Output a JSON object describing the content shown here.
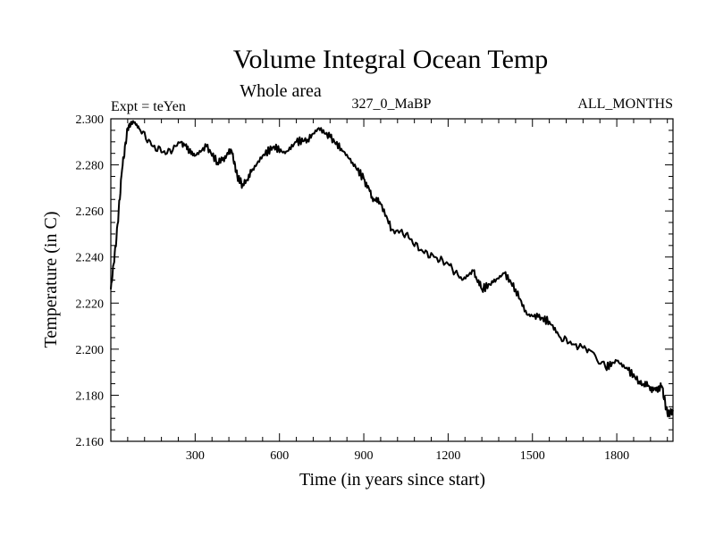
{
  "chart_data": {
    "type": "line",
    "title": "Volume Integral Ocean Temp",
    "subtitle": "Whole area",
    "experiment": "Expt = teYen",
    "run_label": "327_0_MaBP",
    "months_label": "ALL_MONTHS",
    "xlabel": "Time (in years since start)",
    "ylabel": "Temperature (in C)",
    "xlim": [
      0,
      2000
    ],
    "ylim": [
      2.16,
      2.3
    ],
    "xticks": [
      300,
      600,
      900,
      1200,
      1500,
      1800
    ],
    "yticks": [
      "2.160",
      "2.180",
      "2.200",
      "2.220",
      "2.240",
      "2.260",
      "2.280",
      "2.300"
    ],
    "series": [
      {
        "name": "Volume Integral Ocean Temp",
        "x": [
          0,
          20,
          40,
          60,
          80,
          100,
          150,
          200,
          250,
          280,
          300,
          340,
          380,
          400,
          430,
          450,
          470,
          500,
          540,
          580,
          620,
          660,
          700,
          740,
          780,
          820,
          860,
          900,
          930,
          960,
          1000,
          1050,
          1100,
          1150,
          1200,
          1250,
          1290,
          1320,
          1360,
          1400,
          1440,
          1480,
          1520,
          1560,
          1600,
          1650,
          1700,
          1760,
          1800,
          1840,
          1880,
          1910,
          1940,
          1960,
          1980,
          2000
        ],
        "y": [
          2.226,
          2.248,
          2.278,
          2.296,
          2.299,
          2.296,
          2.288,
          2.285,
          2.29,
          2.286,
          2.284,
          2.288,
          2.281,
          2.283,
          2.286,
          2.275,
          2.271,
          2.277,
          2.284,
          2.288,
          2.285,
          2.29,
          2.291,
          2.296,
          2.292,
          2.287,
          2.281,
          2.274,
          2.266,
          2.263,
          2.252,
          2.25,
          2.243,
          2.24,
          2.237,
          2.23,
          2.234,
          2.226,
          2.229,
          2.233,
          2.226,
          2.215,
          2.214,
          2.212,
          2.205,
          2.202,
          2.2,
          2.192,
          2.195,
          2.191,
          2.186,
          2.184,
          2.182,
          2.184,
          2.172,
          2.173
        ]
      }
    ]
  }
}
